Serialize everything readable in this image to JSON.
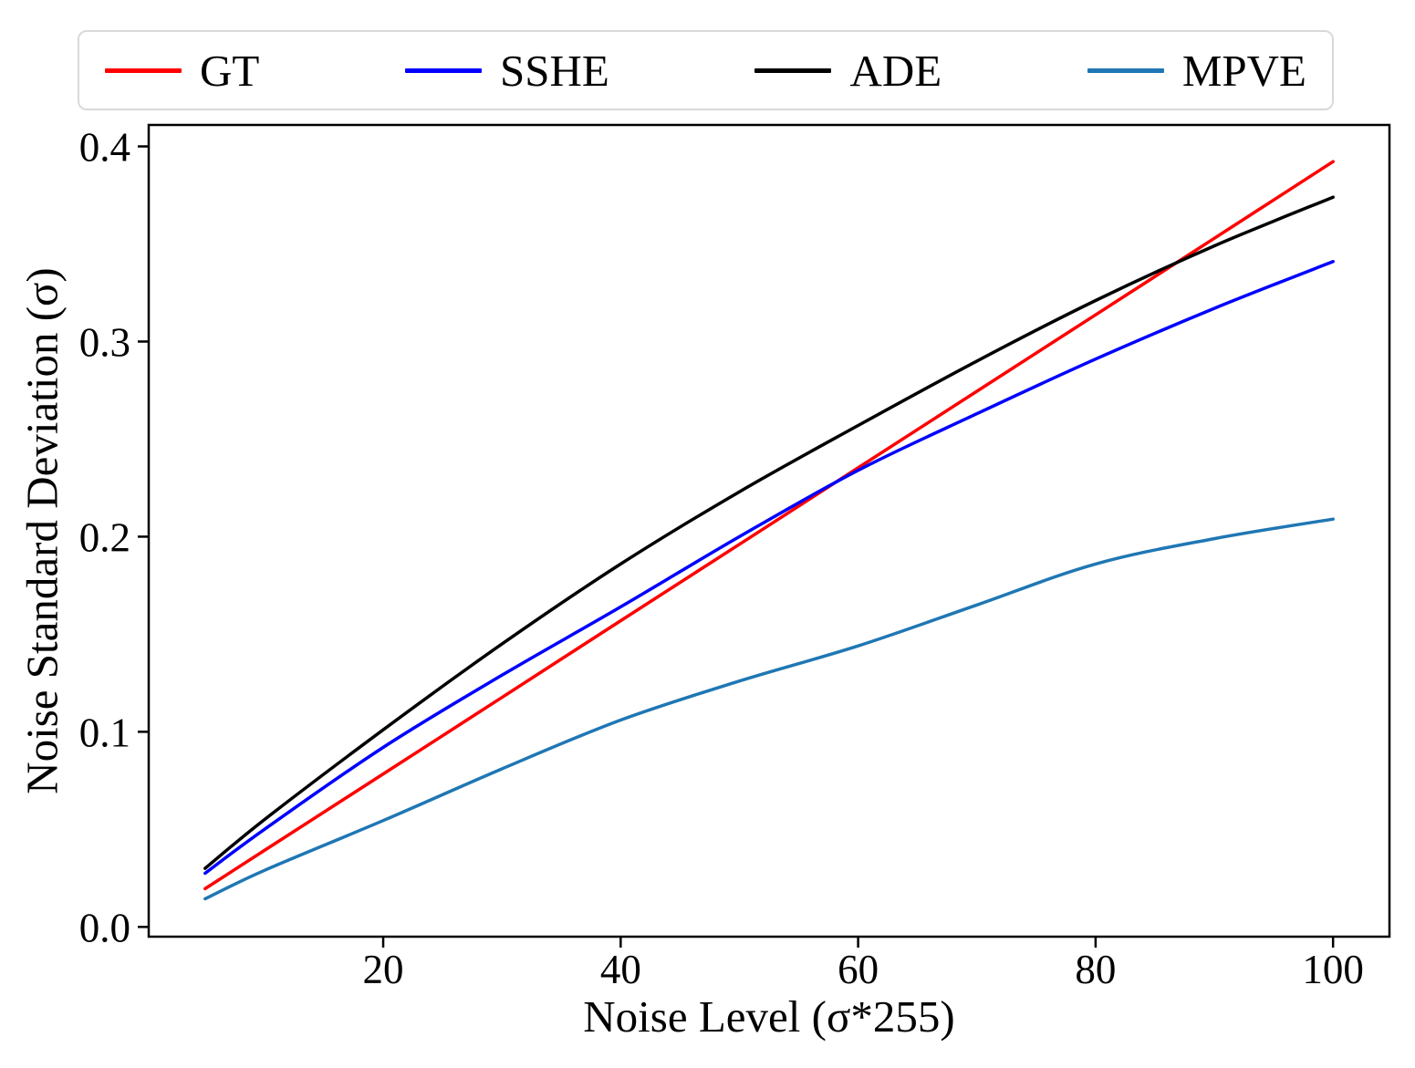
{
  "figure": {
    "background": "#ffffff",
    "axis_color": "#000000"
  },
  "chart_data": {
    "type": "line",
    "title": "",
    "xlabel": "Noise Level (σ*255)",
    "ylabel": "Noise Standard Deviation (σ)",
    "x": [
      5,
      10,
      20,
      30,
      40,
      50,
      60,
      70,
      80,
      90,
      100
    ],
    "series": [
      {
        "name": "GT",
        "color": "#ff0000",
        "values": [
          0.0196,
          0.0392,
          0.0784,
          0.1176,
          0.1569,
          0.1961,
          0.2353,
          0.2745,
          0.3137,
          0.3529,
          0.3922
        ]
      },
      {
        "name": "SSHE",
        "color": "#0000ff",
        "values": [
          0.0275,
          0.05,
          0.092,
          0.129,
          0.164,
          0.2,
          0.234,
          0.263,
          0.291,
          0.317,
          0.341
        ]
      },
      {
        "name": "ADE",
        "color": "#000000",
        "values": [
          0.03,
          0.055,
          0.101,
          0.145,
          0.186,
          0.223,
          0.257,
          0.29,
          0.321,
          0.349,
          0.374
        ]
      },
      {
        "name": "MPVE",
        "color": "#1f77b4",
        "values": [
          0.0144,
          0.029,
          0.0545,
          0.081,
          0.106,
          0.126,
          0.144,
          0.165,
          0.186,
          0.199,
          0.209
        ]
      }
    ],
    "xlim": [
      0.25,
      104.75
    ],
    "ylim": [
      -0.005,
      0.411
    ],
    "xticks": [
      20,
      40,
      60,
      80,
      100
    ],
    "xtick_labels": [
      "20",
      "40",
      "60",
      "80",
      "100"
    ],
    "yticks": [
      0.0,
      0.1,
      0.2,
      0.3,
      0.4
    ],
    "ytick_labels": [
      "0.0",
      "0.1",
      "0.2",
      "0.3",
      "0.4"
    ],
    "grid": false,
    "legend_position": "top",
    "legend_entries": [
      "GT",
      "SSHE",
      "ADE",
      "MPVE"
    ]
  }
}
